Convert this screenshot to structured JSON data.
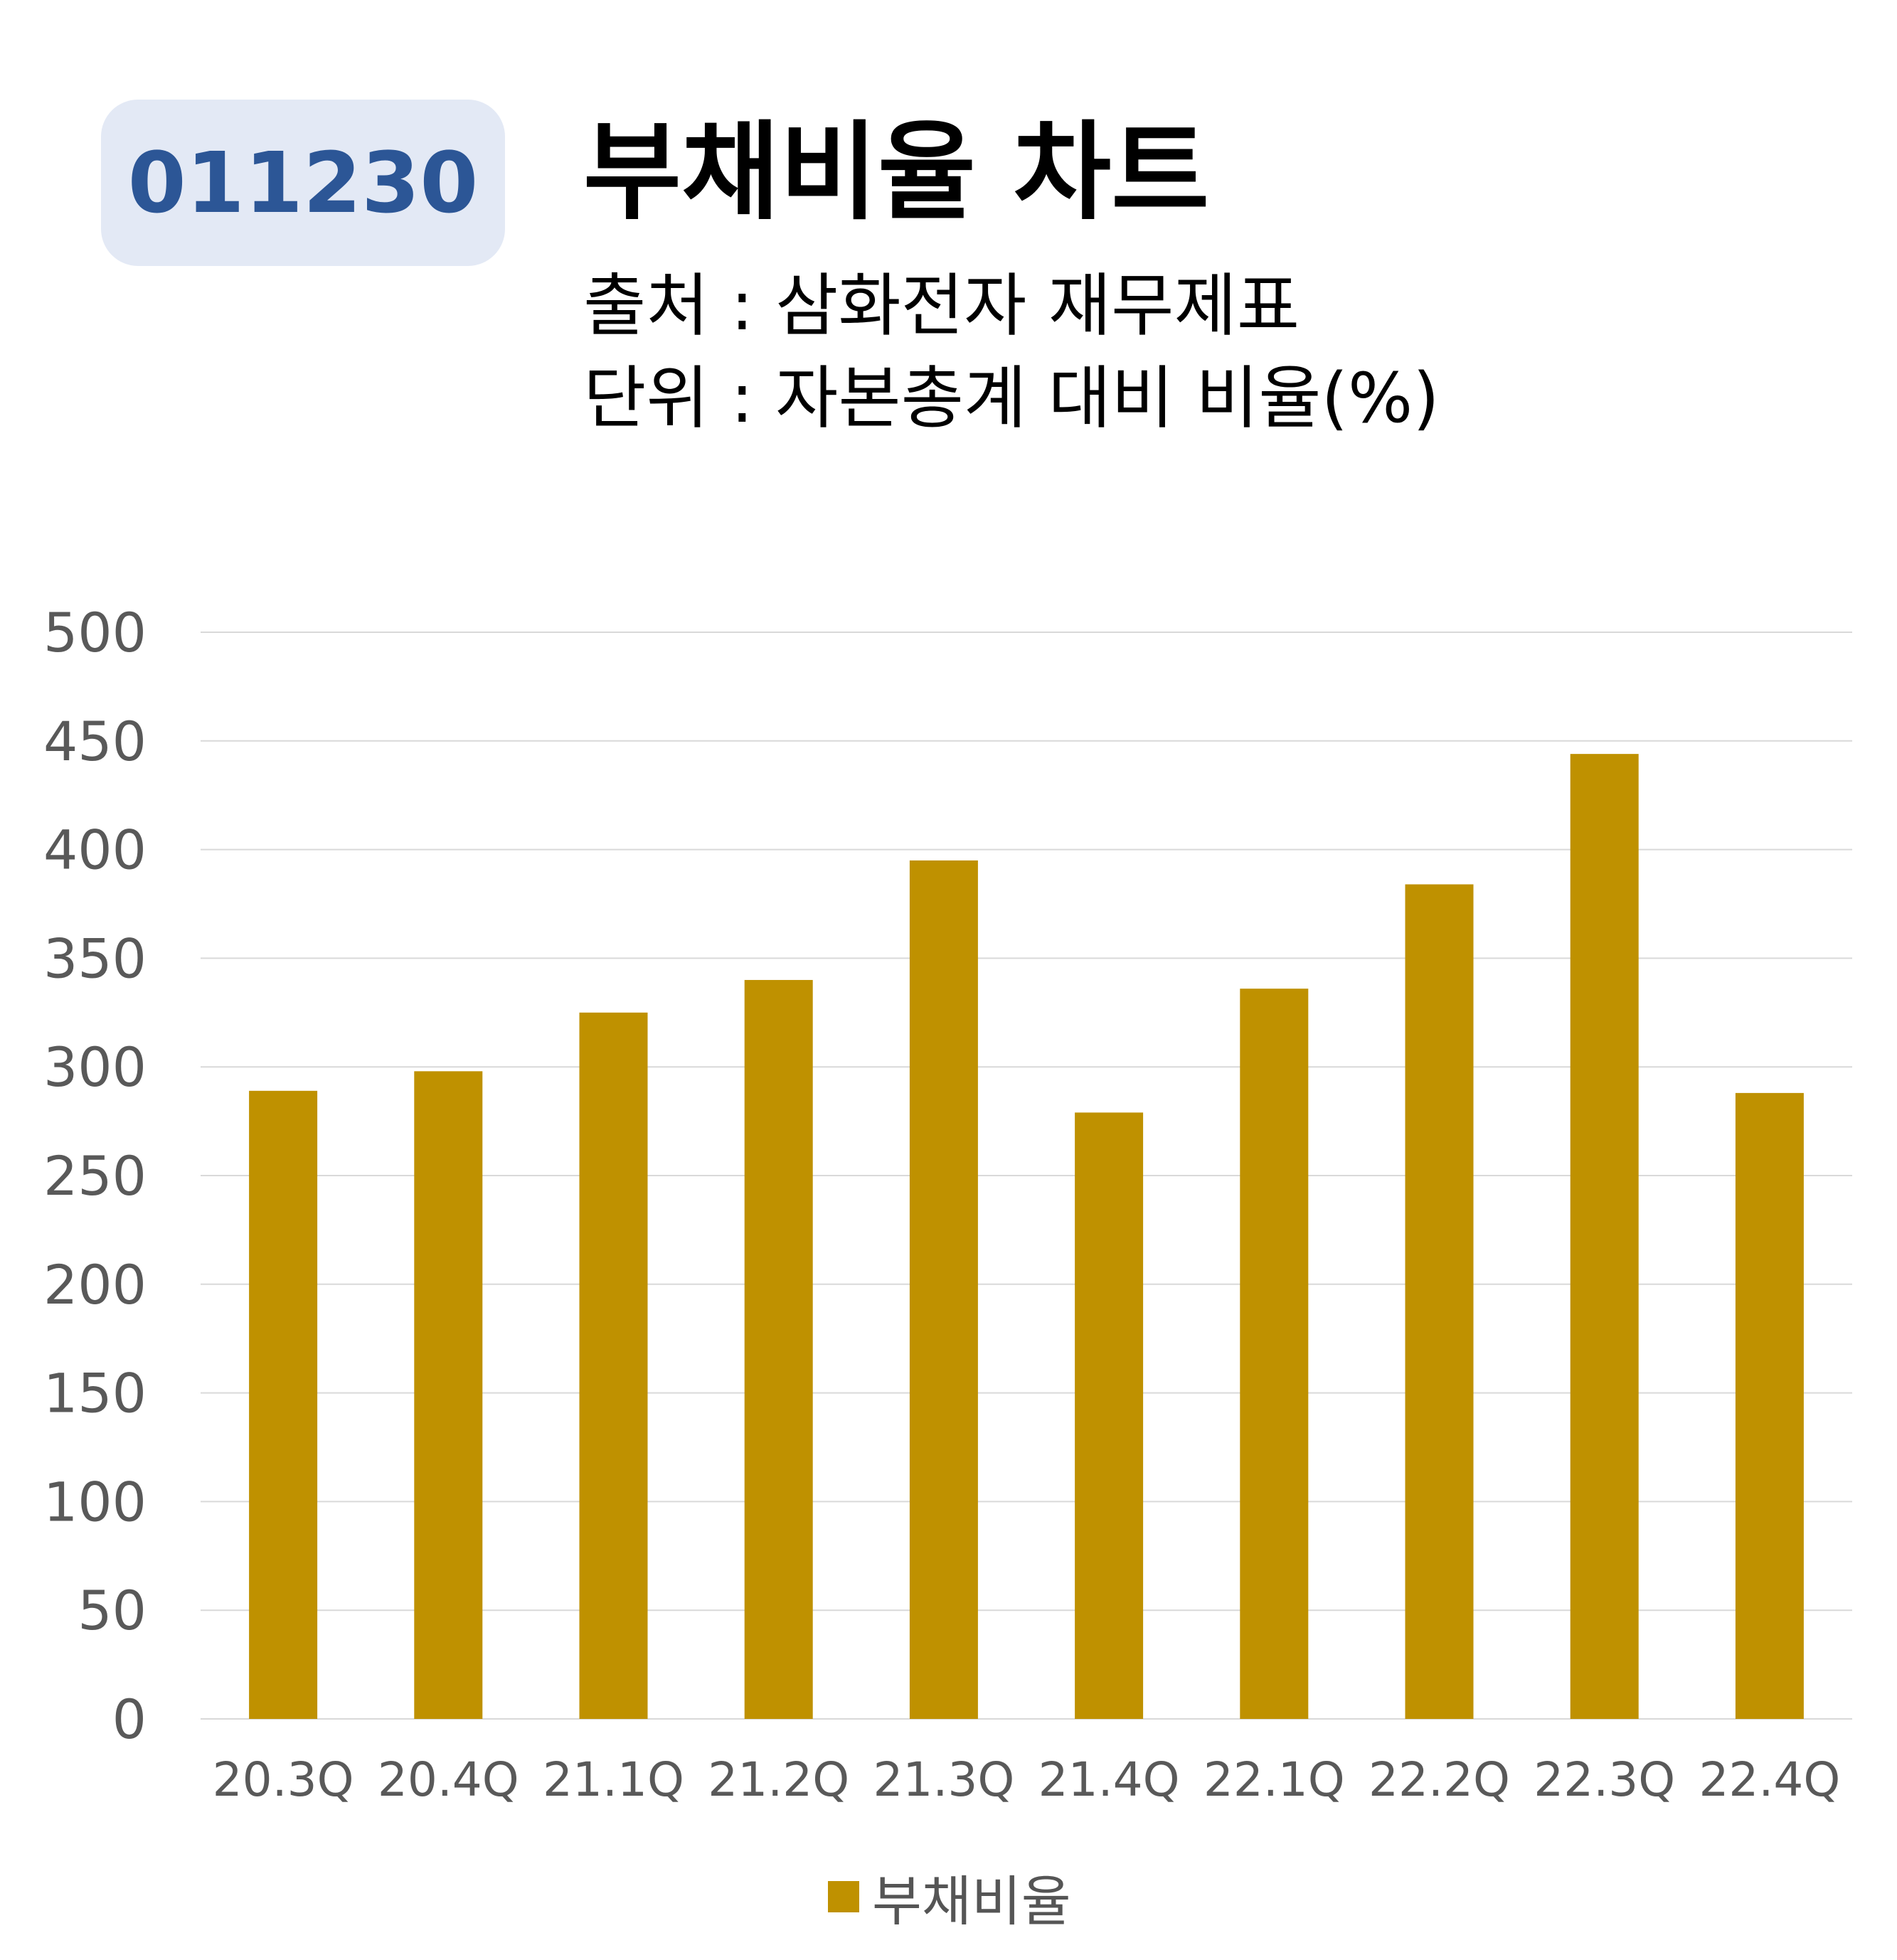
{
  "header": {
    "code": "011230",
    "title": "부채비율 차트",
    "source_line": "출처 : 삼화전자 재무제표",
    "unit_line": "단위 : 자본총계 대비 비율(%)"
  },
  "colors": {
    "bar": "#bf9100",
    "badge_bg": "#e3e9f5",
    "badge_text": "#2c5696",
    "grid": "#d9d9d9",
    "axis_text": "#595959"
  },
  "chart_data": {
    "type": "bar",
    "title": "부채비율 차트",
    "categories": [
      "20.3Q",
      "20.4Q",
      "21.1Q",
      "21.2Q",
      "21.3Q",
      "21.4Q",
      "22.1Q",
      "22.2Q",
      "22.3Q",
      "22.4Q"
    ],
    "series": [
      {
        "name": "부채비율",
        "values": [
          289,
          298,
          325,
          340,
          395,
          279,
          336,
          384,
          444,
          288
        ]
      }
    ],
    "ylim": [
      0,
      500
    ],
    "yticks": [
      0,
      50,
      100,
      150,
      200,
      250,
      300,
      350,
      400,
      450,
      500
    ],
    "grid": true,
    "legend": "bottom"
  }
}
